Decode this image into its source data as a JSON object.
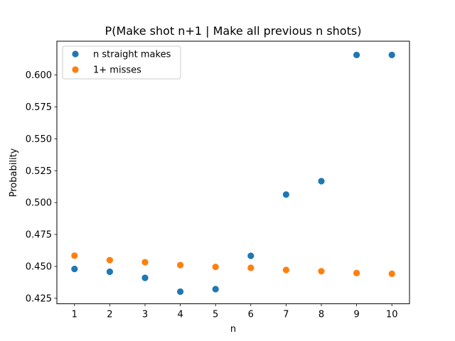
{
  "chart_data": {
    "type": "scatter",
    "title": "P(Make shot n+1 | Make all previous n shots)",
    "xlabel": "n",
    "ylabel": "Probability",
    "x": [
      1,
      2,
      3,
      4,
      5,
      6,
      7,
      8,
      9,
      10
    ],
    "xlim": [
      0.5,
      10.5
    ],
    "ylim": [
      0.4207,
      0.6265
    ],
    "x_ticks": [
      "1",
      "2",
      "3",
      "4",
      "5",
      "6",
      "7",
      "8",
      "9",
      "10"
    ],
    "y_ticks": [
      "0.425",
      "0.450",
      "0.475",
      "0.500",
      "0.525",
      "0.550",
      "0.575",
      "0.600"
    ],
    "grid": false,
    "legend_position": "top-left",
    "series": [
      {
        "name": "n straight makes",
        "color": "#1f77b4",
        "values": [
          0.448,
          0.4458,
          0.441,
          0.4302,
          0.4322,
          0.4583,
          0.5063,
          0.5168,
          0.6157,
          0.6157
        ]
      },
      {
        "name": "1+ misses",
        "color": "#ff7f0e",
        "values": [
          0.4584,
          0.4549,
          0.4533,
          0.451,
          0.4496,
          0.4489,
          0.4472,
          0.4462,
          0.4448,
          0.4442
        ]
      }
    ]
  }
}
